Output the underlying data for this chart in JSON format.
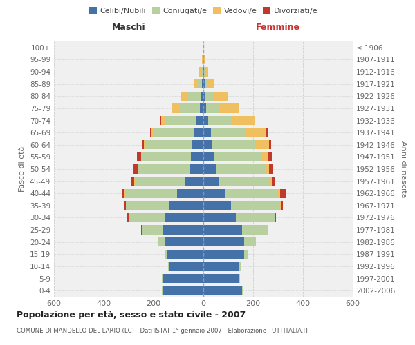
{
  "age_groups": [
    "0-4",
    "5-9",
    "10-14",
    "15-19",
    "20-24",
    "25-29",
    "30-34",
    "35-39",
    "40-44",
    "45-49",
    "50-54",
    "55-59",
    "60-64",
    "65-69",
    "70-74",
    "75-79",
    "80-84",
    "85-89",
    "90-94",
    "95-99",
    "100+"
  ],
  "birth_years": [
    "2002-2006",
    "1997-2001",
    "1992-1996",
    "1987-1991",
    "1982-1986",
    "1977-1981",
    "1972-1976",
    "1967-1971",
    "1962-1966",
    "1957-1961",
    "1952-1956",
    "1947-1951",
    "1942-1946",
    "1937-1941",
    "1932-1936",
    "1927-1931",
    "1922-1926",
    "1917-1921",
    "1912-1916",
    "1907-1911",
    "≤ 1906"
  ],
  "maschi": {
    "celibi": [
      165,
      165,
      140,
      145,
      155,
      165,
      155,
      135,
      105,
      75,
      55,
      50,
      45,
      40,
      30,
      15,
      10,
      5,
      3,
      1,
      0
    ],
    "coniugati": [
      3,
      2,
      2,
      10,
      25,
      80,
      145,
      175,
      210,
      200,
      205,
      195,
      185,
      160,
      120,
      80,
      55,
      20,
      8,
      2,
      0
    ],
    "vedovi": [
      0,
      0,
      0,
      0,
      0,
      1,
      1,
      2,
      3,
      3,
      5,
      5,
      8,
      10,
      20,
      30,
      25,
      15,
      8,
      2,
      0
    ],
    "divorziati": [
      0,
      0,
      0,
      0,
      1,
      3,
      5,
      8,
      10,
      15,
      18,
      18,
      8,
      5,
      3,
      2,
      1,
      0,
      0,
      0,
      0
    ]
  },
  "femmine": {
    "nubili": [
      155,
      145,
      145,
      165,
      165,
      155,
      130,
      110,
      85,
      65,
      50,
      45,
      35,
      30,
      20,
      12,
      8,
      5,
      3,
      1,
      0
    ],
    "coniugate": [
      3,
      3,
      5,
      15,
      45,
      100,
      155,
      195,
      215,
      200,
      200,
      185,
      175,
      140,
      95,
      55,
      35,
      15,
      5,
      2,
      0
    ],
    "vedove": [
      0,
      0,
      0,
      0,
      1,
      2,
      3,
      5,
      8,
      10,
      15,
      30,
      55,
      80,
      90,
      75,
      55,
      25,
      12,
      3,
      0
    ],
    "divorziate": [
      0,
      0,
      0,
      0,
      1,
      3,
      5,
      10,
      22,
      15,
      15,
      15,
      8,
      8,
      3,
      2,
      1,
      0,
      0,
      0,
      0
    ]
  },
  "colors": {
    "celibi": "#4472a8",
    "coniugati": "#b8cfa0",
    "vedovi": "#f0c060",
    "divorziati": "#c0392b"
  },
  "title": "Popolazione per età, sesso e stato civile - 2007",
  "subtitle": "COMUNE DI MANDELLO DEL LARIO (LC) - Dati ISTAT 1° gennaio 2007 - Elaborazione TUTTITALIA.IT",
  "xlabel_left": "Maschi",
  "xlabel_right": "Femmine",
  "ylabel_left": "Fasce di età",
  "ylabel_right": "Anni di nascita",
  "xlim": 600,
  "bg_color": "#f0f0f0",
  "grid_color": "#cccccc"
}
